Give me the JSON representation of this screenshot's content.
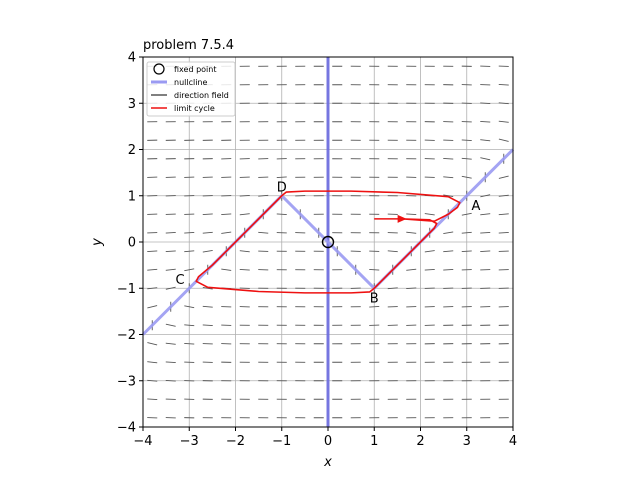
{
  "chart_data": {
    "type": "line",
    "title": "problem 7.5.4",
    "xlabel": "x",
    "ylabel": "y",
    "xlim": [
      -4,
      4
    ],
    "ylim": [
      -4,
      4
    ],
    "xticks": [
      -4,
      -3,
      -2,
      -1,
      0,
      1,
      2,
      3,
      4
    ],
    "yticks": [
      -4,
      -3,
      -2,
      -1,
      0,
      1,
      2,
      3,
      4
    ],
    "grid": true,
    "legend_position": "top-left",
    "legend": [
      {
        "label": "fixed point",
        "marker": "circle-open",
        "color": "#000000"
      },
      {
        "label": "nullcline",
        "color": "#9a9af2"
      },
      {
        "label": "direction field",
        "color": "#555555"
      },
      {
        "label": "limit cycle",
        "color": "#ee1111"
      }
    ],
    "fixed_point": {
      "x": 0,
      "y": 0
    },
    "nullclines": [
      {
        "name": "x = 0",
        "points": [
          [
            0,
            -4
          ],
          [
            0,
            4
          ]
        ]
      },
      {
        "name": "y = F(x)",
        "points": [
          [
            -4,
            -2
          ],
          [
            -1,
            1
          ],
          [
            1,
            -1
          ],
          [
            4,
            2
          ]
        ]
      }
    ],
    "limit_cycle": [
      [
        1.0,
        0.5
      ],
      [
        1.6,
        0.5
      ],
      [
        2.3,
        0.45
      ],
      [
        2.6,
        0.6
      ],
      [
        2.8,
        0.75
      ],
      [
        2.85,
        0.85
      ],
      [
        2.6,
        0.98
      ],
      [
        1.5,
        1.07
      ],
      [
        0.5,
        1.1
      ],
      [
        -0.5,
        1.1
      ],
      [
        -0.9,
        1.08
      ],
      [
        -1.0,
        1.0
      ],
      [
        -1.5,
        0.5
      ],
      [
        -2.0,
        0.0
      ],
      [
        -2.5,
        -0.5
      ],
      [
        -2.8,
        -0.75
      ],
      [
        -2.85,
        -0.85
      ],
      [
        -2.6,
        -0.98
      ],
      [
        -1.5,
        -1.07
      ],
      [
        -0.5,
        -1.1
      ],
      [
        0.5,
        -1.1
      ],
      [
        0.9,
        -1.08
      ],
      [
        1.0,
        -1.0
      ],
      [
        1.5,
        -0.5
      ],
      [
        2.0,
        0.0
      ],
      [
        2.3,
        0.3
      ],
      [
        2.35,
        0.4
      ],
      [
        2.2,
        0.48
      ],
      [
        1.6,
        0.5
      ],
      [
        1.0,
        0.5
      ]
    ],
    "arrow": {
      "from": [
        1.4,
        0.5
      ],
      "to": [
        1.7,
        0.5
      ]
    },
    "point_labels": [
      {
        "text": "A",
        "x": 3.2,
        "y": 0.8
      },
      {
        "text": "B",
        "x": 1.0,
        "y": -1.2
      },
      {
        "text": "C",
        "x": -3.2,
        "y": -0.8
      },
      {
        "text": "D",
        "x": -1.0,
        "y": 1.2
      }
    ],
    "direction_field": {
      "x_samples": 20,
      "y_samples": 20,
      "range": [
        -3.8,
        3.8
      ]
    }
  },
  "colors": {
    "nullcline": "#9a9af2",
    "nullcline_vertical": "#6a6ae0",
    "limit_cycle": "#ee1111",
    "direction_field": "#555555",
    "grid": "#b0b0b0"
  }
}
